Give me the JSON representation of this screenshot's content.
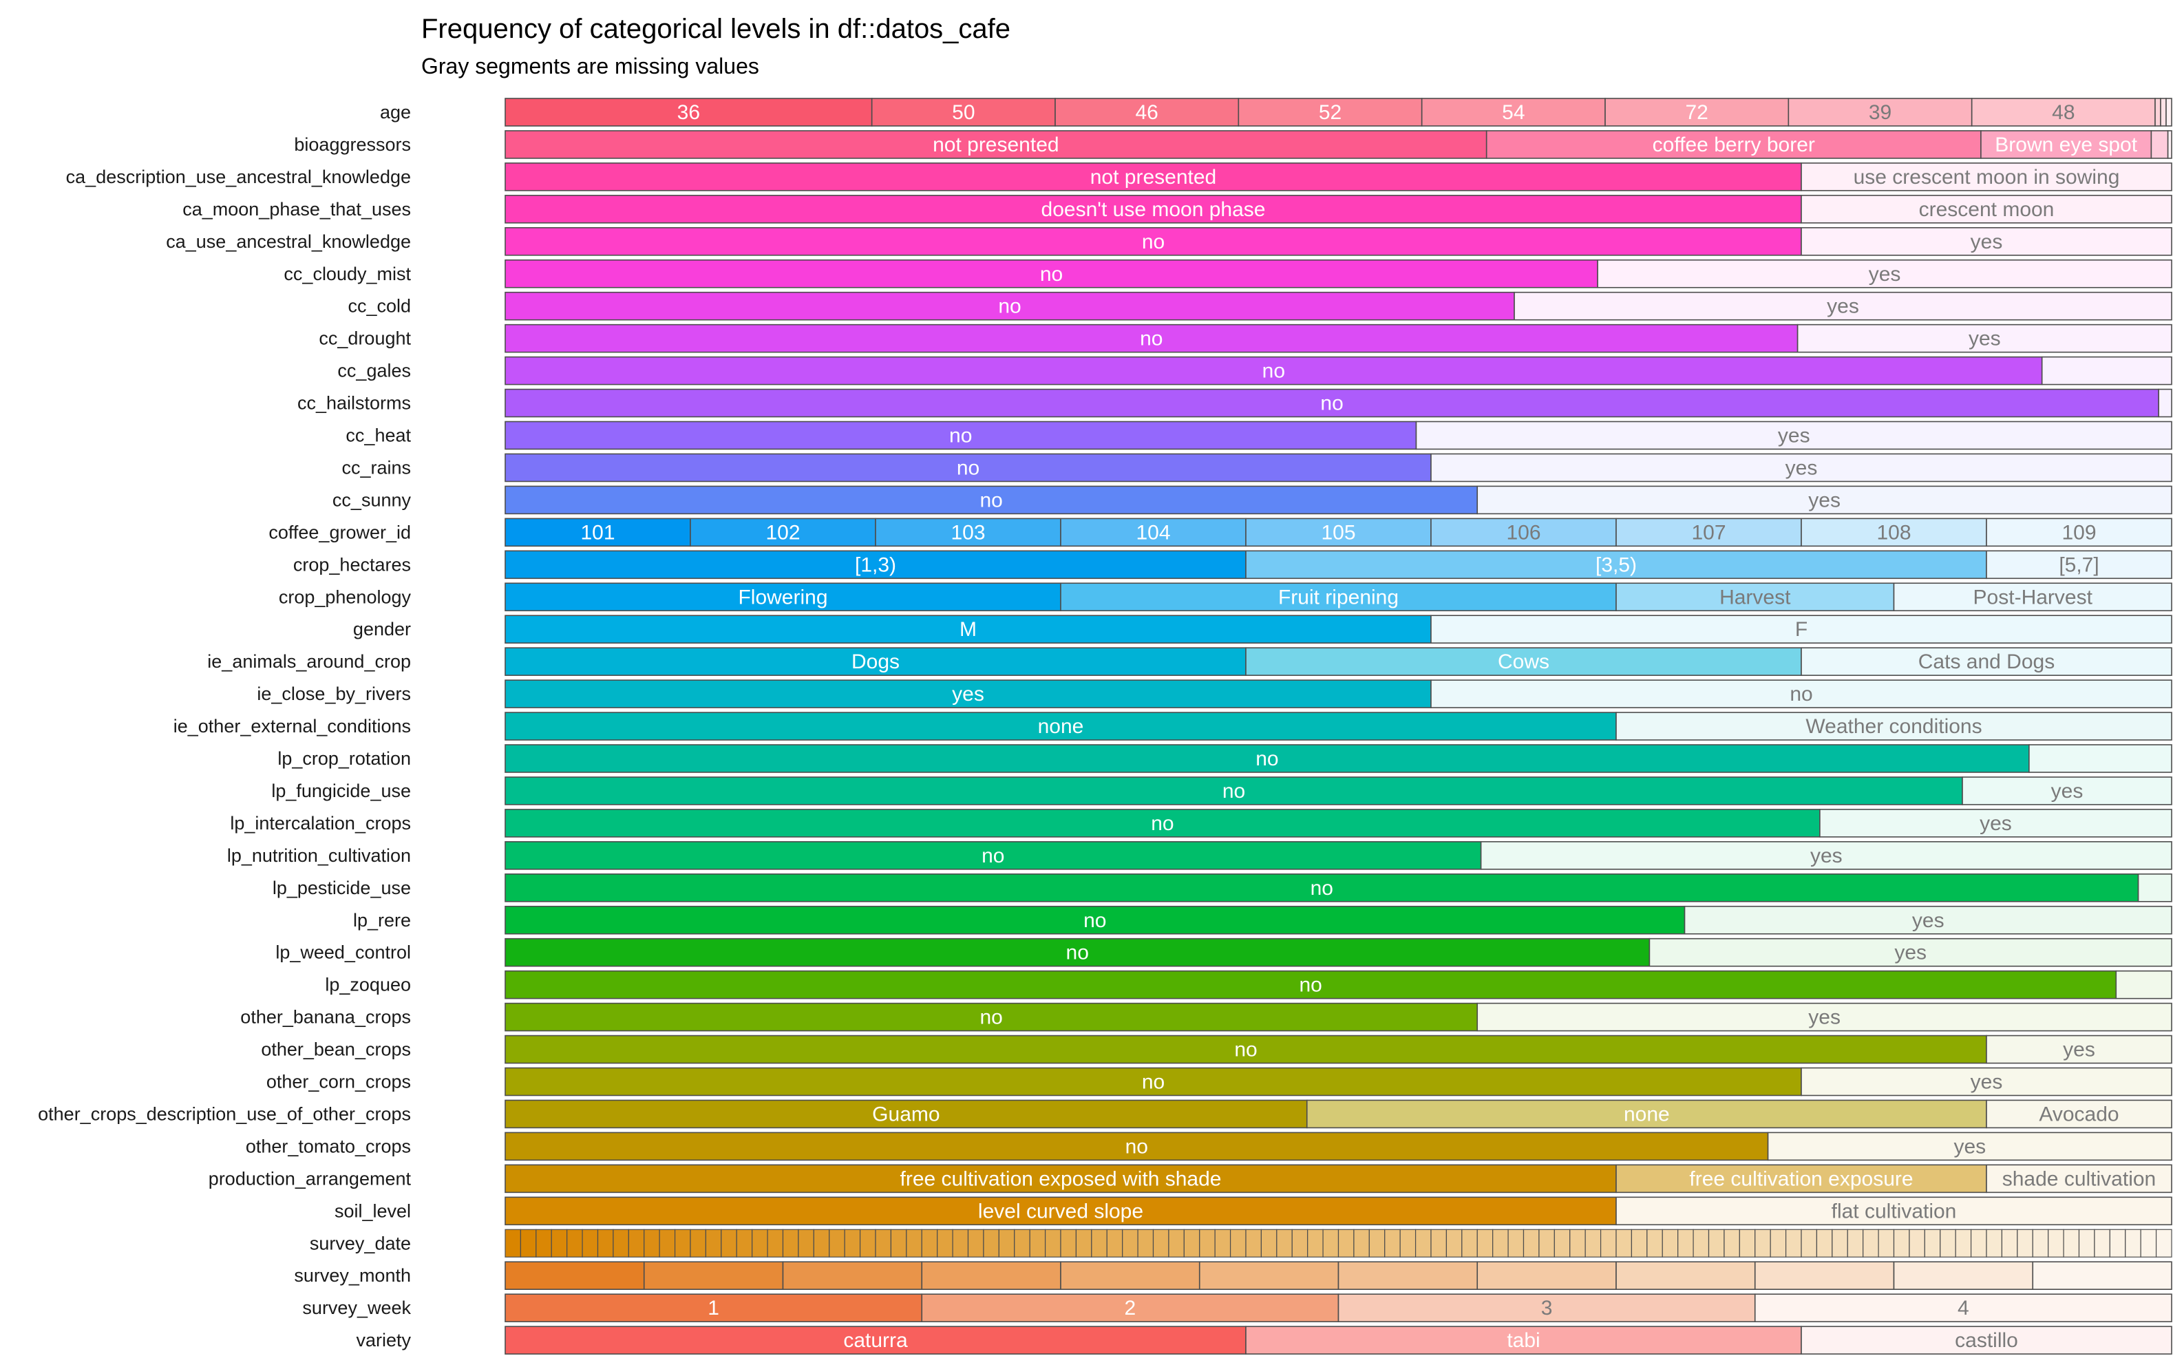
{
  "chart_data": {
    "type": "bar",
    "orientation": "horizontal",
    "stacking": "proportional",
    "title": "Frequency of categorical levels in df::datos_cafe",
    "subtitle": "Gray segments are missing values",
    "xlabel": "",
    "ylabel": "",
    "rows": [
      {
        "name": "age",
        "color": "#F8566D",
        "segments": [
          {
            "label": "36",
            "value": 2
          },
          {
            "label": "50",
            "value": 1
          },
          {
            "label": "46",
            "value": 1
          },
          {
            "label": "52",
            "value": 1
          },
          {
            "label": "54",
            "value": 1
          },
          {
            "label": "72",
            "value": 1
          },
          {
            "label": "39",
            "value": 1
          },
          {
            "label": "48",
            "value": 1
          },
          {
            "label": "",
            "value": 0.03
          },
          {
            "label": "",
            "value": 0.03
          },
          {
            "label": "",
            "value": 0.03
          }
        ]
      },
      {
        "name": "bioaggressors",
        "color": "#FC5A8D",
        "segments": [
          {
            "label": "not presented",
            "value": 5.3
          },
          {
            "label": "coffee berry borer",
            "value": 2.67
          },
          {
            "label": "Brown eye spot",
            "value": 0.92
          },
          {
            "label": "",
            "value": 0.09
          },
          {
            "label": "",
            "value": 0.02
          }
        ]
      },
      {
        "name": "ca_description_use_ancestral_knowledge",
        "color": "#FF43A8",
        "segments": [
          {
            "label": "not presented",
            "value": 7
          },
          {
            "label": "use crescent moon in sowing",
            "value": 2
          }
        ]
      },
      {
        "name": "ca_moon_phase_that_uses",
        "color": "#FF3FB8",
        "segments": [
          {
            "label": "doesn't use moon phase",
            "value": 7
          },
          {
            "label": "crescent moon",
            "value": 2
          }
        ]
      },
      {
        "name": "ca_use_ancestral_knowledge",
        "color": "#FF3FC8",
        "segments": [
          {
            "label": "no",
            "value": 7
          },
          {
            "label": "yes",
            "value": 2
          }
        ]
      },
      {
        "name": "cc_cloudy_mist",
        "color": "#F93FDB",
        "segments": [
          {
            "label": "no",
            "value": 5.9
          },
          {
            "label": "yes",
            "value": 3.1
          }
        ]
      },
      {
        "name": "cc_cold",
        "color": "#EB45EB",
        "segments": [
          {
            "label": "no",
            "value": 5.45
          },
          {
            "label": "yes",
            "value": 3.55
          }
        ]
      },
      {
        "name": "cc_drought",
        "color": "#DB4CF5",
        "segments": [
          {
            "label": "no",
            "value": 6.98
          },
          {
            "label": "yes",
            "value": 2.02
          }
        ]
      },
      {
        "name": "cc_gales",
        "color": "#C454FA",
        "segments": [
          {
            "label": "no",
            "value": 8.3
          },
          {
            "label": "",
            "value": 0.7
          }
        ]
      },
      {
        "name": "cc_hailstorms",
        "color": "#AD5CFB",
        "segments": [
          {
            "label": "no",
            "value": 8.93
          },
          {
            "label": "",
            "value": 0.07
          }
        ]
      },
      {
        "name": "cc_heat",
        "color": "#9468FC",
        "segments": [
          {
            "label": "no",
            "value": 4.92
          },
          {
            "label": "yes",
            "value": 4.08
          }
        ]
      },
      {
        "name": "cc_rains",
        "color": "#7C74F9",
        "segments": [
          {
            "label": "no",
            "value": 5
          },
          {
            "label": "yes",
            "value": 4
          }
        ]
      },
      {
        "name": "cc_sunny",
        "color": "#5F86F6",
        "segments": [
          {
            "label": "no",
            "value": 5.25
          },
          {
            "label": "yes",
            "value": 3.75
          }
        ]
      },
      {
        "name": "coffee_grower_id",
        "color": "#0096F0",
        "segments": [
          {
            "label": "101",
            "value": 1
          },
          {
            "label": "102",
            "value": 1
          },
          {
            "label": "103",
            "value": 1
          },
          {
            "label": "104",
            "value": 1
          },
          {
            "label": "105",
            "value": 1
          },
          {
            "label": "106",
            "value": 1
          },
          {
            "label": "107",
            "value": 1
          },
          {
            "label": "108",
            "value": 1
          },
          {
            "label": "109",
            "value": 1
          }
        ]
      },
      {
        "name": "crop_hectares",
        "color": "#009DED",
        "segments": [
          {
            "label": "[1,3)",
            "value": 4
          },
          {
            "label": "[3,5)",
            "value": 4
          },
          {
            "label": "[5,7]",
            "value": 1
          }
        ]
      },
      {
        "name": "crop_phenology",
        "color": "#00A3EB",
        "segments": [
          {
            "label": "Flowering",
            "value": 3
          },
          {
            "label": "Fruit ripening",
            "value": 3
          },
          {
            "label": "Harvest",
            "value": 1.5
          },
          {
            "label": "Post-Harvest",
            "value": 1.5
          }
        ]
      },
      {
        "name": "gender",
        "color": "#00AEE3",
        "segments": [
          {
            "label": "M",
            "value": 5
          },
          {
            "label": "F",
            "value": 4
          }
        ]
      },
      {
        "name": "ie_animals_around_crop",
        "color": "#00B2D6",
        "segments": [
          {
            "label": "Dogs",
            "value": 4
          },
          {
            "label": "Cows",
            "value": 3
          },
          {
            "label": "Cats and Dogs",
            "value": 2
          }
        ]
      },
      {
        "name": "ie_close_by_rivers",
        "color": "#00B5C8",
        "segments": [
          {
            "label": "yes",
            "value": 5
          },
          {
            "label": "no",
            "value": 4
          }
        ]
      },
      {
        "name": "ie_other_external_conditions",
        "color": "#00BAB6",
        "segments": [
          {
            "label": "none",
            "value": 6
          },
          {
            "label": "Weather conditions",
            "value": 3
          }
        ]
      },
      {
        "name": "lp_crop_rotation",
        "color": "#00BB9F",
        "segments": [
          {
            "label": "no",
            "value": 8.23
          },
          {
            "label": "",
            "value": 0.77
          }
        ]
      },
      {
        "name": "lp_fungicide_use",
        "color": "#00BE8E",
        "segments": [
          {
            "label": "no",
            "value": 7.87
          },
          {
            "label": "yes",
            "value": 1.13
          }
        ]
      },
      {
        "name": "lp_intercalation_crops",
        "color": "#00BF7D",
        "segments": [
          {
            "label": "no",
            "value": 7.1
          },
          {
            "label": "yes",
            "value": 1.9
          }
        ]
      },
      {
        "name": "lp_nutrition_cultivation",
        "color": "#00BE6A",
        "segments": [
          {
            "label": "no",
            "value": 5.27
          },
          {
            "label": "yes",
            "value": 3.73
          }
        ]
      },
      {
        "name": "lp_pesticide_use",
        "color": "#00BC52",
        "segments": [
          {
            "label": "no",
            "value": 8.82
          },
          {
            "label": "",
            "value": 0.18
          }
        ]
      },
      {
        "name": "lp_rere",
        "color": "#00BA38",
        "segments": [
          {
            "label": "no",
            "value": 6.37
          },
          {
            "label": "yes",
            "value": 2.63
          }
        ]
      },
      {
        "name": "lp_weed_control",
        "color": "#13B212",
        "segments": [
          {
            "label": "no",
            "value": 6.18
          },
          {
            "label": "yes",
            "value": 2.82
          }
        ]
      },
      {
        "name": "lp_zoqueo",
        "color": "#53B000",
        "segments": [
          {
            "label": "no",
            "value": 8.7
          },
          {
            "label": "",
            "value": 0.3
          }
        ]
      },
      {
        "name": "other_banana_crops",
        "color": "#72AE00",
        "segments": [
          {
            "label": "no",
            "value": 5.25
          },
          {
            "label": "yes",
            "value": 3.75
          }
        ]
      },
      {
        "name": "other_bean_crops",
        "color": "#8DAA00",
        "segments": [
          {
            "label": "no",
            "value": 8
          },
          {
            "label": "yes",
            "value": 1
          }
        ]
      },
      {
        "name": "other_corn_crops",
        "color": "#A4A400",
        "segments": [
          {
            "label": "no",
            "value": 7
          },
          {
            "label": "yes",
            "value": 2
          }
        ]
      },
      {
        "name": "other_crops_description_use_of_other_crops",
        "color": "#B29C00",
        "segments": [
          {
            "label": "Guamo",
            "value": 4.33
          },
          {
            "label": "none",
            "value": 3.67
          },
          {
            "label": "Avocado",
            "value": 1
          }
        ]
      },
      {
        "name": "other_tomato_crops",
        "color": "#BF9500",
        "segments": [
          {
            "label": "no",
            "value": 6.82
          },
          {
            "label": "yes",
            "value": 2.18
          }
        ]
      },
      {
        "name": "production_arrangement",
        "color": "#CC8F00",
        "segments": [
          {
            "label": "free cultivation exposed with shade",
            "value": 6
          },
          {
            "label": "free cultivation exposure",
            "value": 2
          },
          {
            "label": "shade cultivation",
            "value": 1
          }
        ]
      },
      {
        "name": "soil_level",
        "color": "#D68A00",
        "segments": [
          {
            "label": "level curved slope",
            "value": 6
          },
          {
            "label": "flat cultivation",
            "value": 3
          }
        ]
      },
      {
        "name": "survey_date",
        "color": "#D98500",
        "pattern": "many-levels",
        "segments_count": 108
      },
      {
        "name": "survey_month",
        "color": "#E57F25",
        "segments": [
          {
            "label": "",
            "value": 1
          },
          {
            "label": "",
            "value": 1
          },
          {
            "label": "",
            "value": 1
          },
          {
            "label": "",
            "value": 1
          },
          {
            "label": "",
            "value": 1
          },
          {
            "label": "",
            "value": 1
          },
          {
            "label": "",
            "value": 1
          },
          {
            "label": "",
            "value": 1
          },
          {
            "label": "",
            "value": 1
          },
          {
            "label": "",
            "value": 1
          },
          {
            "label": "",
            "value": 1
          },
          {
            "label": "",
            "value": 1
          }
        ]
      },
      {
        "name": "survey_week",
        "color": "#EE7744",
        "segments": [
          {
            "label": "1",
            "value": 3
          },
          {
            "label": "2",
            "value": 3
          },
          {
            "label": "3",
            "value": 3
          },
          {
            "label": "4",
            "value": 3
          }
        ]
      },
      {
        "name": "variety",
        "color": "#F8605D",
        "segments": [
          {
            "label": "caturra",
            "value": 4
          },
          {
            "label": "tabi",
            "value": 3
          },
          {
            "label": "castillo",
            "value": 2
          }
        ]
      }
    ]
  }
}
